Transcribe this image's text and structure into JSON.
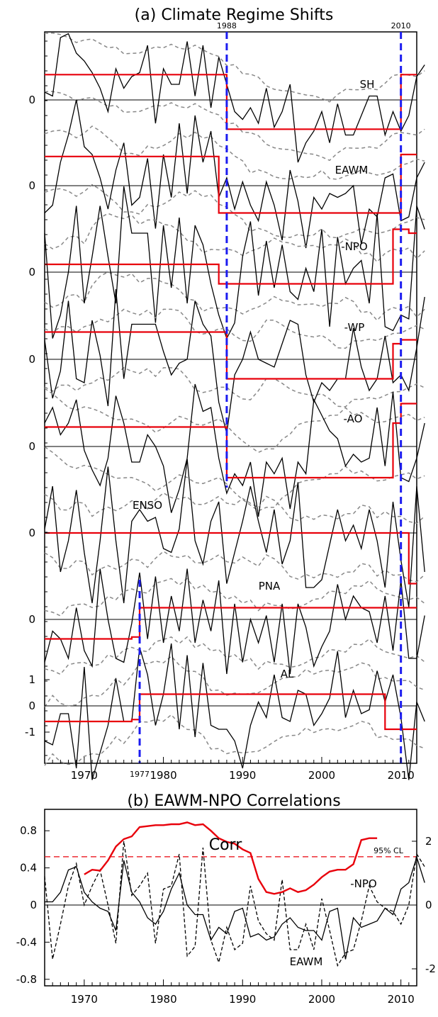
{
  "figure": {
    "panel_a_title": "(a) Climate Regime Shifts",
    "panel_b_title": "(b) EAWM-NPO Correlations"
  },
  "chart_data": [
    {
      "type": "line",
      "title": "(a) Climate Regime Shifts",
      "xlabel": "",
      "ylabel": "",
      "xlim": [
        1965,
        2012
      ],
      "x_ticks": [
        1970,
        1980,
        1990,
        2000,
        2010
      ],
      "grid": false,
      "shift_lines": [
        {
          "year": 1988,
          "label": "1988"
        },
        {
          "year": 2010,
          "label": "2010"
        },
        {
          "year": 1977,
          "label": "1977"
        }
      ],
      "series": [
        {
          "name": "SH",
          "y_tick_labels": [
            "0"
          ],
          "values": [
            0.2,
            0.1,
            1.6,
            1.7,
            1.2,
            1.0,
            0.7,
            0.3,
            -0.3,
            0.8,
            0.3,
            0.6,
            0.7,
            1.4,
            -0.6,
            0.8,
            0.4,
            0.4,
            1.5,
            0.1,
            1.4,
            -0.2,
            1.1,
            0.4,
            -0.3,
            -0.5,
            -0.2,
            -0.6,
            0.3,
            -0.7,
            -0.3,
            0.4,
            -1.6,
            -1.1,
            -0.8,
            -0.3,
            -1.1,
            -0.1,
            -0.9,
            -0.9,
            -0.4,
            0.1,
            0.1,
            -0.9,
            -0.3,
            -0.8,
            -0.4,
            0.6,
            0.9
          ],
          "regime_shifts": [
            {
              "from": 1965,
              "to": 1988,
              "mean": 0.65
            },
            {
              "from": 1988,
              "to": 2010,
              "mean": -0.75
            },
            {
              "from": 2010,
              "to": 2012,
              "mean": 0.65
            }
          ]
        },
        {
          "name": "EAWM",
          "y_tick_labels": [
            "0"
          ],
          "values": [
            -0.7,
            -0.5,
            0.6,
            1.3,
            2.2,
            1.0,
            0.8,
            0.2,
            -0.6,
            0.4,
            1.1,
            -0.5,
            -0.3,
            0.7,
            -1.1,
            0.8,
            -0.3,
            1.6,
            -0.2,
            1.8,
            0.6,
            1.4,
            -0.3,
            0.2,
            -0.6,
            0.1,
            -0.5,
            -0.9,
            0.1,
            -0.5,
            -1.4,
            0.4,
            -0.4,
            -1.6,
            -0.3,
            -0.6,
            -0.2,
            -0.3,
            -0.2,
            0.0,
            -1.5,
            -0.6,
            -0.8,
            0.2,
            0.3,
            -0.9,
            -0.8,
            0.2,
            0.6
          ],
          "regime_shifts": [
            {
              "from": 1965,
              "to": 1987,
              "mean": 0.75
            },
            {
              "from": 1987,
              "to": 2010,
              "mean": -0.7
            },
            {
              "from": 2010,
              "to": 2012,
              "mean": 0.8
            }
          ]
        },
        {
          "name": "-NPO",
          "y_tick_labels": [
            "0"
          ],
          "values": [
            1.0,
            -1.7,
            -1.1,
            0.0,
            1.7,
            -0.8,
            0.4,
            1.7,
            0.4,
            -0.8,
            2.2,
            1.0,
            1.0,
            1.0,
            -1.3,
            1.2,
            -0.4,
            1.4,
            -0.8,
            1.2,
            0.7,
            -0.3,
            -1.1,
            -1.7,
            -1.3,
            0.4,
            1.3,
            -0.6,
            0.8,
            -0.4,
            0.7,
            -0.5,
            -0.7,
            0.1,
            -0.5,
            1.1,
            -1.4,
            0.9,
            -0.3,
            0.1,
            0.3,
            -0.8,
            1.5,
            -1.4,
            -1.5,
            -1.1,
            -1.2,
            1.7,
            1.1
          ],
          "regime_shifts": [
            {
              "from": 1965,
              "to": 1987,
              "mean": 0.2
            },
            {
              "from": 1987,
              "to": 2009,
              "mean": -0.3
            },
            {
              "from": 2009,
              "to": 2011,
              "mean": 1.1
            },
            {
              "from": 2011,
              "to": 2012,
              "mean": 1.0
            }
          ]
        },
        {
          "name": "-WP",
          "y_tick_labels": [
            "0"
          ],
          "values": [
            0.5,
            -1.0,
            -0.3,
            1.5,
            -0.5,
            -0.6,
            1.0,
            0.1,
            -1.2,
            1.8,
            -0.5,
            0.9,
            0.9,
            0.9,
            0.9,
            0.2,
            -0.4,
            -0.1,
            0.0,
            1.5,
            0.9,
            0.6,
            -1.1,
            -1.9,
            -0.4,
            0.0,
            0.7,
            0.0,
            -0.1,
            -0.2,
            0.4,
            1.0,
            0.9,
            -0.4,
            -1.1,
            -0.6,
            -0.8,
            -0.5,
            -0.5,
            0.8,
            -0.2,
            -0.8,
            -0.5,
            0.6,
            -0.6,
            -0.4,
            -0.8,
            0.3,
            1.6
          ],
          "regime_shifts": [
            {
              "from": 1965,
              "to": 1988,
              "mean": 0.7
            },
            {
              "from": 1988,
              "to": 2009,
              "mean": -0.5
            },
            {
              "from": 2009,
              "to": 2010,
              "mean": 0.4
            },
            {
              "from": 2010,
              "to": 2012,
              "mean": 0.5
            }
          ]
        },
        {
          "name": "-AO",
          "y_tick_labels": [
            "0"
          ],
          "values": [
            0.6,
            1.0,
            0.3,
            0.6,
            1.2,
            -0.1,
            -0.6,
            -1.0,
            -0.3,
            1.3,
            0.6,
            -0.4,
            -0.4,
            0.3,
            0.0,
            -0.5,
            -1.7,
            -1.1,
            -0.3,
            1.6,
            0.9,
            1.0,
            -0.3,
            -1.2,
            -0.7,
            -1.0,
            -0.4,
            -1.8,
            -0.4,
            -0.7,
            -0.3,
            -1.6,
            -0.4,
            -0.7,
            1.2,
            0.8,
            0.4,
            0.2,
            -0.5,
            -0.2,
            -0.4,
            -0.3,
            1.0,
            -0.5,
            1.4,
            -0.8,
            -0.9,
            -0.3,
            0.6
          ],
          "regime_shifts": [
            {
              "from": 1965,
              "to": 1988,
              "mean": 0.5
            },
            {
              "from": 1988,
              "to": 2009,
              "mean": -0.8
            },
            {
              "from": 2009,
              "to": 2010,
              "mean": 0.6
            },
            {
              "from": 2010,
              "to": 2012,
              "mean": 1.1
            }
          ]
        },
        {
          "name": "ENSO",
          "y_tick_labels": [
            "0"
          ],
          "values": [
            0.1,
            1.2,
            -1.0,
            -0.2,
            1.1,
            -0.5,
            -1.8,
            -0.2,
            1.7,
            -0.2,
            -1.8,
            0.3,
            0.6,
            0.3,
            0.4,
            -0.4,
            -0.5,
            0.1,
            1.9,
            -0.2,
            -0.8,
            0.3,
            0.8,
            -1.3,
            -0.5,
            0.3,
            1.2,
            0.3,
            -0.5,
            0.6,
            -0.8,
            -0.2,
            1.3,
            -1.4,
            -1.4,
            -1.2,
            -0.3,
            0.6,
            -0.2,
            0.2,
            -0.4,
            0.6,
            -0.2,
            -1.4,
            0.8,
            -0.7,
            -1.9,
            1.2,
            -1.0
          ],
          "regime_shifts": [
            {
              "from": 1965,
              "to": 2010,
              "mean": 0.0
            },
            {
              "from": 2010,
              "to": 2011,
              "mean": 0.0
            },
            {
              "from": 2011,
              "to": 2012,
              "mean": -1.3
            }
          ]
        },
        {
          "name": "PNA",
          "y_tick_labels": [
            "0"
          ],
          "values": [
            -1.1,
            -0.3,
            -0.5,
            -1.0,
            0.3,
            -0.8,
            -1.2,
            1.3,
            0.0,
            -1.0,
            -1.1,
            -0.1,
            1.2,
            -0.5,
            1.1,
            -0.6,
            0.6,
            -0.3,
            1.3,
            -0.6,
            0.5,
            -0.3,
            1.0,
            -1.4,
            0.4,
            -1.1,
            0.0,
            -0.6,
            0.1,
            -1.1,
            0.4,
            -1.4,
            0.4,
            -0.2,
            -1.2,
            -0.7,
            -0.3,
            0.9,
            0.0,
            0.6,
            0.3,
            0.2,
            -0.6,
            0.6,
            -0.8,
            1.0,
            -1.0,
            -1.0,
            0.1
          ],
          "regime_shifts": [
            {
              "from": 1965,
              "to": 1976,
              "mean": -0.5
            },
            {
              "from": 1976,
              "to": 1977,
              "mean": -0.45
            },
            {
              "from": 1977,
              "to": 2012,
              "mean": 0.3
            }
          ]
        },
        {
          "name": "AL",
          "y_tick_labels": [
            "1",
            "0",
            "-1"
          ],
          "ylim": [
            -1.8,
            1.5
          ],
          "values": [
            -0.9,
            -1.0,
            -0.2,
            -0.2,
            -1.6,
            1.0,
            -1.9,
            -1.2,
            -0.5,
            0.7,
            -0.4,
            -0.4,
            1.5,
            0.8,
            -0.5,
            0.3,
            1.6,
            -0.6,
            1.3,
            -0.8,
            1.1,
            -0.5,
            -0.6,
            -0.6,
            -0.9,
            -1.6,
            -0.5,
            0.1,
            -0.3,
            0.8,
            -0.3,
            -0.4,
            0.4,
            0.3,
            -0.5,
            -0.2,
            0.2,
            1.4,
            -0.3,
            0.4,
            -0.2,
            -0.1,
            0.9,
            0.1,
            0.8,
            -0.3,
            -1.9,
            0.1,
            -0.4
          ],
          "regime_shifts": [
            {
              "from": 1965,
              "to": 1976,
              "mean": -0.4
            },
            {
              "from": 1976,
              "to": 1977,
              "mean": -0.35
            },
            {
              "from": 1977,
              "to": 2007,
              "mean": 0.3
            },
            {
              "from": 2007,
              "to": 2008,
              "mean": 0.3
            },
            {
              "from": 2008,
              "to": 2012,
              "mean": -0.6
            }
          ]
        }
      ]
    },
    {
      "type": "line",
      "title": "(b) EAWM-NPO Correlations",
      "xlabel": "",
      "ylabel": "",
      "xlim": [
        1965,
        2012
      ],
      "x_ticks": [
        1970,
        1980,
        1990,
        2000,
        2010
      ],
      "ylim_left": [
        -1.0,
        1.0
      ],
      "left_ticks": [
        {
          "value": 0.8,
          "label": "0.8"
        },
        {
          "value": 0.4,
          "label": "0.4"
        },
        {
          "value": 0.0,
          "label": "0"
        },
        {
          "value": -0.4,
          "label": "-0.4"
        },
        {
          "value": -0.8,
          "label": "-0.8"
        }
      ],
      "ylim_right": [
        -3.0,
        3.0
      ],
      "right_ticks": [
        {
          "value": 2,
          "label": "2"
        },
        {
          "value": 0,
          "label": "0"
        },
        {
          "value": -2,
          "label": "-2"
        }
      ],
      "significance_line": {
        "value": 0.52,
        "label": "95% CL"
      },
      "grid": false,
      "series": [
        {
          "name": "Corr",
          "axis": "left",
          "x": [
            1970,
            1971,
            1972,
            1973,
            1974,
            1975,
            1976,
            1977,
            1978,
            1979,
            1980,
            1981,
            1982,
            1983,
            1984,
            1985,
            1986,
            1987,
            1988,
            1989,
            1990,
            1991,
            1992,
            1993,
            1994,
            1995,
            1996,
            1997,
            1998,
            1999,
            2000,
            2001,
            2002,
            2003,
            2004,
            2005,
            2006,
            2007
          ],
          "values": [
            0.33,
            0.38,
            0.37,
            0.48,
            0.63,
            0.71,
            0.74,
            0.84,
            0.85,
            0.86,
            0.86,
            0.87,
            0.87,
            0.89,
            0.86,
            0.87,
            0.8,
            0.72,
            0.68,
            0.66,
            0.6,
            0.56,
            0.28,
            0.14,
            0.12,
            0.14,
            0.18,
            0.14,
            0.16,
            0.22,
            0.3,
            0.36,
            0.38,
            0.38,
            0.44,
            0.7,
            0.72,
            0.72
          ]
        },
        {
          "name": "-NPO",
          "axis": "right",
          "values": [
            0.9,
            -1.7,
            -0.6,
            0.6,
            1.3,
            0.0,
            0.6,
            1.1,
            0.0,
            -1.2,
            2.0,
            0.3,
            0.6,
            1.0,
            -1.2,
            0.5,
            0.6,
            1.6,
            -1.6,
            -1.3,
            1.8,
            -1.1,
            -1.8,
            -0.7,
            -1.4,
            -1.2,
            0.6,
            -0.5,
            -0.9,
            -1.1,
            0.8,
            -1.4,
            -1.4,
            -0.6,
            -1.4,
            0.2,
            -0.8,
            -1.9,
            -1.5,
            -1.4,
            -0.5,
            0.6,
            0.1,
            -0.1,
            -0.2,
            -0.6,
            0.0,
            1.6,
            1.2
          ]
        },
        {
          "name": "EAWM",
          "axis": "right",
          "values": [
            0.1,
            0.1,
            0.4,
            1.1,
            1.2,
            0.4,
            0.1,
            -0.1,
            -0.2,
            -0.8,
            1.4,
            0.4,
            0.1,
            -0.4,
            -0.6,
            -0.2,
            0.5,
            1.0,
            0.0,
            -0.3,
            -0.3,
            -1.1,
            -0.7,
            -0.9,
            -0.2,
            -0.1,
            -1.0,
            -0.9,
            -1.1,
            -1.0,
            -0.6,
            -0.4,
            -0.7,
            -0.8,
            -0.8,
            -1.1,
            -0.2,
            -0.1,
            -1.7,
            -0.4,
            -0.7,
            -0.6,
            -0.5,
            -0.1,
            -0.3,
            0.5,
            0.7,
            1.5,
            0.7
          ]
        }
      ]
    }
  ]
}
